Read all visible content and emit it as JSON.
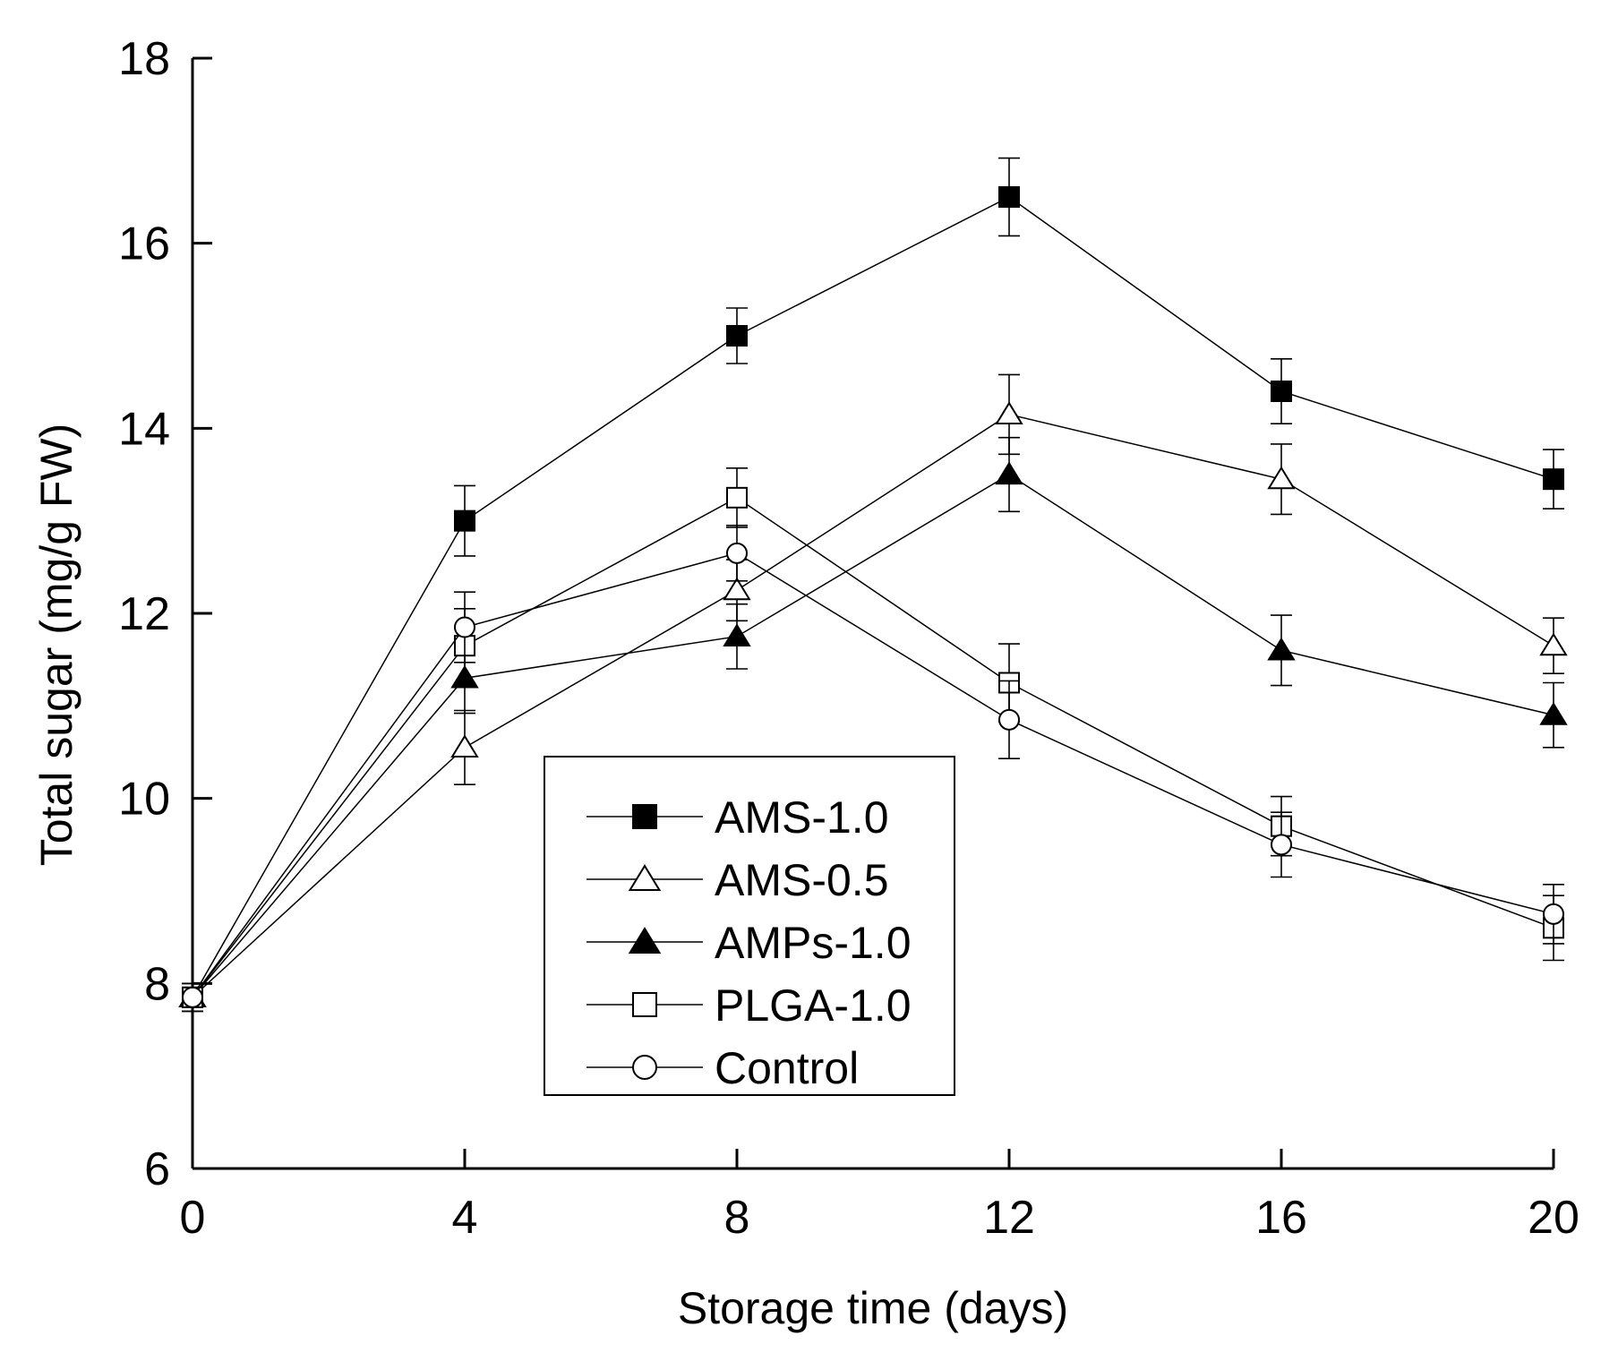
{
  "chart_data": {
    "type": "line",
    "title": "",
    "xlabel": "Storage time (days)",
    "ylabel": "Total sugar (mg/g FW)",
    "xlim": [
      0,
      20
    ],
    "ylim": [
      6,
      18
    ],
    "x_ticks": [
      0,
      4,
      8,
      12,
      16,
      20
    ],
    "y_ticks": [
      6,
      8,
      10,
      12,
      14,
      16,
      18
    ],
    "x": [
      0,
      4,
      8,
      12,
      16,
      20
    ],
    "grid": false,
    "legend_position": "bottom-center",
    "series": [
      {
        "name": "AMS-1.0",
        "marker": "square-filled",
        "values": [
          7.85,
          13.0,
          15.0,
          16.5,
          14.4,
          13.45
        ],
        "errors": [
          0.15,
          0.38,
          0.3,
          0.42,
          0.35,
          0.32
        ]
      },
      {
        "name": "AMS-0.5",
        "marker": "triangle-open",
        "values": [
          7.85,
          10.55,
          12.25,
          14.15,
          13.45,
          11.65
        ],
        "errors": [
          0.15,
          0.4,
          0.33,
          0.43,
          0.38,
          0.3
        ]
      },
      {
        "name": "AMPs-1.0",
        "marker": "triangle-filled",
        "values": [
          7.85,
          11.3,
          11.75,
          13.5,
          11.6,
          10.9
        ],
        "errors": [
          0.15,
          0.38,
          0.35,
          0.4,
          0.38,
          0.35
        ]
      },
      {
        "name": "PLGA-1.0",
        "marker": "square-open",
        "values": [
          7.85,
          11.65,
          13.25,
          11.25,
          9.7,
          8.6
        ],
        "errors": [
          0.15,
          0.4,
          0.32,
          0.42,
          0.32,
          0.35
        ]
      },
      {
        "name": "Control",
        "marker": "circle-open",
        "values": [
          7.85,
          11.85,
          12.65,
          10.85,
          9.5,
          8.75
        ],
        "errors": [
          0.15,
          0.38,
          0.3,
          0.42,
          0.35,
          0.32
        ]
      }
    ]
  }
}
